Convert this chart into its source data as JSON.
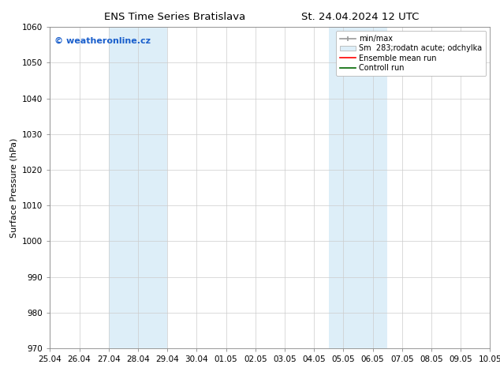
{
  "title_left": "ENS Time Series Bratislava",
  "title_right": "St. 24.04.2024 12 UTC",
  "ylabel": "Surface Pressure (hPa)",
  "ylim": [
    970,
    1060
  ],
  "yticks": [
    970,
    980,
    990,
    1000,
    1010,
    1020,
    1030,
    1040,
    1050,
    1060
  ],
  "xtick_labels": [
    "25.04",
    "26.04",
    "27.04",
    "28.04",
    "29.04",
    "30.04",
    "01.05",
    "02.05",
    "03.05",
    "04.05",
    "05.05",
    "06.05",
    "07.05",
    "08.05",
    "09.05",
    "10.05"
  ],
  "xtick_values": [
    0,
    1,
    2,
    3,
    4,
    5,
    6,
    7,
    8,
    9,
    10,
    11,
    12,
    13,
    14,
    15
  ],
  "shade_regions": [
    {
      "x_start": 2,
      "x_end": 4,
      "color": "#ddeef8"
    },
    {
      "x_start": 9.5,
      "x_end": 11.5,
      "color": "#ddeef8"
    }
  ],
  "watermark_text": "© weatheronline.cz",
  "watermark_color": "#1a5fcc",
  "legend_labels": [
    "min/max",
    "Sm  283;rodatn acute; odchylka",
    "Ensemble mean run",
    "Controll run"
  ],
  "background_color": "#ffffff",
  "grid_color": "#cccccc",
  "title_fontsize": 9.5,
  "axis_label_fontsize": 8,
  "tick_fontsize": 7.5,
  "watermark_fontsize": 8,
  "legend_fontsize": 7
}
